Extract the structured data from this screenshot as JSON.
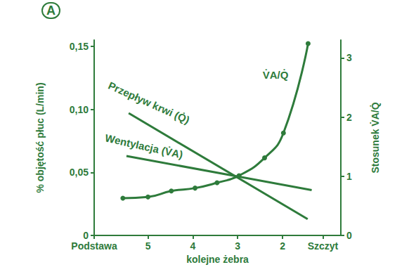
{
  "chart_data": {
    "type": "line",
    "title": "A",
    "x_label": "kolejne żebra",
    "y_label": "% objętość płuc (L/min)",
    "y2_label": "Stosunek V̇A/Q̇",
    "xlim": [
      6.2,
      0.7
    ],
    "xticks": [
      {
        "value": 6.2,
        "label": "Podstawa"
      },
      5,
      4,
      3,
      2,
      {
        "value": 1.1,
        "label": "Szczyt"
      }
    ],
    "ylim": [
      0,
      0.155
    ],
    "yticks": [
      0,
      {
        "value": 0.05,
        "label": "0,05"
      },
      {
        "value": 0.1,
        "label": "0,10"
      },
      {
        "value": 0.15,
        "label": "0,15"
      }
    ],
    "y2lim": [
      0,
      3.3
    ],
    "y2ticks": [
      0,
      1,
      2,
      3
    ],
    "grid": false,
    "series": [
      {
        "name": "Przepływ krwi (Q̇)",
        "color": "#2e7b3b",
        "x": [
          5.43,
          1.44
        ],
        "values": [
          0.097,
          0.013
        ],
        "marker": "none",
        "line_style": "solid"
      },
      {
        "name": "Wentylacja (V̇A)",
        "color": "#2e7b3b",
        "x": [
          5.48,
          1.35
        ],
        "values": [
          0.063,
          0.036
        ],
        "marker": "none",
        "line_style": "solid"
      },
      {
        "name": "V̇A/Q̇",
        "color": "#2e7b3b",
        "axis": "y2",
        "x": [
          5.56,
          5.0,
          4.48,
          3.95,
          3.46,
          2.97,
          2.4,
          1.98,
          1.43
        ],
        "values": [
          0.63,
          0.65,
          0.75,
          0.8,
          0.89,
          1.01,
          1.31,
          1.73,
          3.24
        ],
        "marker": "circle",
        "line_style": "smooth"
      }
    ]
  }
}
